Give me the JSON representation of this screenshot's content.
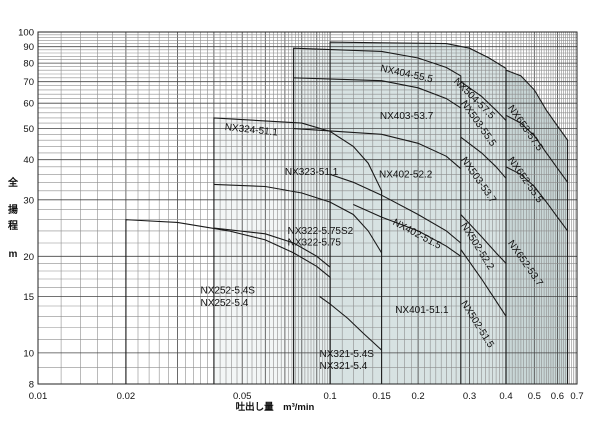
{
  "chart_data": {
    "type": "line",
    "title": "",
    "xlabel": "吐出し量　m³/min",
    "ylabel_chars": [
      "全",
      "揚",
      "程",
      "m"
    ],
    "x_scale": "log",
    "y_scale": "log",
    "xlim": [
      0.01,
      0.7
    ],
    "ylim": [
      8,
      100
    ],
    "grid": true,
    "x_ticks": [
      {
        "v": 0.01,
        "label": "0.01"
      },
      {
        "v": 0.02,
        "label": "0.02"
      },
      {
        "v": 0.05,
        "label": "0.05"
      },
      {
        "v": 0.1,
        "label": "0.1"
      },
      {
        "v": 0.15,
        "label": "0.15"
      },
      {
        "v": 0.2,
        "label": "0.2"
      },
      {
        "v": 0.3,
        "label": "0.3"
      },
      {
        "v": 0.4,
        "label": "0.4"
      },
      {
        "v": 0.5,
        "label": "0.5"
      },
      {
        "v": 0.6,
        "label": "0.6"
      },
      {
        "v": 0.7,
        "label": "0.7"
      }
    ],
    "y_ticks": [
      {
        "v": 8,
        "label": "8"
      },
      {
        "v": 10,
        "label": "10"
      },
      {
        "v": 15,
        "label": "15"
      },
      {
        "v": 20,
        "label": "20"
      },
      {
        "v": 30,
        "label": "30"
      },
      {
        "v": 40,
        "label": "40"
      },
      {
        "v": 50,
        "label": "50"
      },
      {
        "v": 60,
        "label": "60"
      },
      {
        "v": 70,
        "label": "70"
      },
      {
        "v": 80,
        "label": "80"
      },
      {
        "v": 90,
        "label": "90"
      },
      {
        "v": 100,
        "label": "100"
      }
    ],
    "regions": [
      {
        "name": "NX25",
        "fill": "#ffffff",
        "outline": [
          [
            0.02,
            8
          ],
          [
            0.02,
            26
          ],
          [
            0.03,
            25.5
          ],
          [
            0.045,
            24
          ],
          [
            0.06,
            22.5
          ],
          [
            0.075,
            20.5
          ],
          [
            0.09,
            18.6
          ],
          [
            0.1,
            17.2
          ],
          [
            0.1,
            8
          ]
        ],
        "curves": [],
        "labels": [
          {
            "text": "NX252-5.4S",
            "x": 0.036,
            "y": 15.3,
            "rot": 0
          },
          {
            "text": "NX252-5.4",
            "x": 0.036,
            "y": 14.0,
            "rot": 0
          }
        ]
      },
      {
        "name": "NX32",
        "fill": "#f3f6f6",
        "outline": [
          [
            0.04,
            8
          ],
          [
            0.04,
            54
          ],
          [
            0.08,
            52
          ],
          [
            0.1,
            49
          ],
          [
            0.12,
            44
          ],
          [
            0.135,
            39
          ],
          [
            0.15,
            32
          ],
          [
            0.15,
            8
          ]
        ],
        "curves": [
          [
            [
              0.04,
              33.5
            ],
            [
              0.06,
              33
            ],
            [
              0.08,
              31.5
            ],
            [
              0.1,
              29.5
            ],
            [
              0.12,
              27
            ],
            [
              0.135,
              24
            ],
            [
              0.15,
              20.5
            ]
          ],
          [
            [
              0.04,
              24.5
            ],
            [
              0.06,
              23.5
            ],
            [
              0.075,
              22
            ],
            [
              0.09,
              20
            ],
            [
              0.1,
              18.5
            ]
          ],
          [
            [
              0.092,
              15
            ],
            [
              0.1,
              14.2
            ],
            [
              0.115,
              12.8
            ],
            [
              0.13,
              11.5
            ],
            [
              0.145,
              10.5
            ],
            [
              0.15,
              10.2
            ]
          ]
        ],
        "labels": [
          {
            "text": "NX324-51.1",
            "x": 0.0435,
            "y": 49.5,
            "rot": 6
          },
          {
            "text": "NX323-51.1",
            "x": 0.07,
            "y": 35.8,
            "rot": 0
          },
          {
            "text": "NX322-5.75S2",
            "x": 0.0715,
            "y": 23.5,
            "rot": 0
          },
          {
            "text": "NX322-5.75",
            "x": 0.0715,
            "y": 21.6,
            "rot": 0
          },
          {
            "text": "NX321-5.4S",
            "x": 0.092,
            "y": 9.7,
            "rot": 0
          },
          {
            "text": "NX321-5.4",
            "x": 0.092,
            "y": 8.9,
            "rot": 0
          }
        ]
      },
      {
        "name": "NX40",
        "fill": "#e6eded",
        "outline": [
          [
            0.075,
            8
          ],
          [
            0.075,
            89
          ],
          [
            0.15,
            87
          ],
          [
            0.2,
            83
          ],
          [
            0.25,
            77.5
          ],
          [
            0.28,
            73
          ],
          [
            0.28,
            8
          ]
        ],
        "curves": [
          [
            [
              0.075,
              72
            ],
            [
              0.15,
              70.5
            ],
            [
              0.2,
              67
            ],
            [
              0.25,
              62
            ],
            [
              0.28,
              58
            ]
          ],
          [
            [
              0.075,
              50
            ],
            [
              0.15,
              48
            ],
            [
              0.2,
              45
            ],
            [
              0.25,
              41
            ],
            [
              0.28,
              37.5
            ]
          ],
          [
            [
              0.1,
              36
            ],
            [
              0.12,
              34
            ],
            [
              0.15,
              31
            ],
            [
              0.2,
              27
            ],
            [
              0.25,
              24
            ],
            [
              0.28,
              22
            ]
          ],
          [
            [
              0.15,
              26.5
            ],
            [
              0.2,
              24
            ],
            [
              0.25,
              21.5
            ],
            [
              0.28,
              20
            ]
          ],
          [
            [
              0.12,
              29
            ],
            [
              0.15,
              26.5
            ]
          ]
        ],
        "labels": [
          {
            "text": "NX404-55.5",
            "x": 0.148,
            "y": 75.5,
            "rot": 12
          },
          {
            "text": "NX403-53.7",
            "x": 0.148,
            "y": 53.5,
            "rot": 0
          },
          {
            "text": "NX402-52.2",
            "x": 0.147,
            "y": 35.2,
            "rot": 0
          },
          {
            "text": "NX402-51.5",
            "x": 0.163,
            "y": 25.2,
            "rot": 28
          },
          {
            "text": "NX401-51.1",
            "x": 0.167,
            "y": 13.3,
            "rot": 0
          }
        ]
      },
      {
        "name": "NX50",
        "fill": "#d7e2e2",
        "outline": [
          [
            0.1,
            8
          ],
          [
            0.1,
            93
          ],
          [
            0.25,
            92
          ],
          [
            0.3,
            89
          ],
          [
            0.35,
            83
          ],
          [
            0.4,
            77
          ],
          [
            0.4,
            8
          ]
        ],
        "curves": [
          [
            [
              0.28,
              70
            ],
            [
              0.33,
              63
            ],
            [
              0.37,
              57
            ],
            [
              0.4,
              53
            ]
          ],
          [
            [
              0.28,
              47
            ],
            [
              0.33,
              42
            ],
            [
              0.37,
              38
            ],
            [
              0.4,
              35
            ]
          ],
          [
            [
              0.28,
              27
            ],
            [
              0.33,
              23
            ],
            [
              0.37,
              20.5
            ],
            [
              0.4,
              19
            ]
          ],
          [
            [
              0.28,
              21
            ],
            [
              0.33,
              17
            ],
            [
              0.37,
              14.5
            ],
            [
              0.4,
              13
            ]
          ]
        ],
        "labels": [
          {
            "text": "NX504-57.5",
            "x": 0.264,
            "y": 70,
            "rot": 45
          },
          {
            "text": "NX503-55.5",
            "x": 0.28,
            "y": 60,
            "rot": 55
          },
          {
            "text": "NX503-53.7",
            "x": 0.28,
            "y": 40,
            "rot": 55
          },
          {
            "text": "NX502-52.2",
            "x": 0.28,
            "y": 25,
            "rot": 58
          },
          {
            "text": "NX502-51.5",
            "x": 0.28,
            "y": 14.3,
            "rot": 58
          }
        ]
      },
      {
        "name": "NX65",
        "fill": "#c8d6d6",
        "outline": [
          [
            0.4,
            8
          ],
          [
            0.4,
            76
          ],
          [
            0.45,
            73
          ],
          [
            0.5,
            66
          ],
          [
            0.55,
            57
          ],
          [
            0.65,
            46
          ],
          [
            0.65,
            8
          ]
        ],
        "curves": [
          [
            [
              0.4,
              55
            ],
            [
              0.45,
              52
            ],
            [
              0.5,
              47.5
            ],
            [
              0.55,
              42
            ],
            [
              0.65,
              34
            ]
          ],
          [
            [
              0.4,
              38
            ],
            [
              0.45,
              36
            ],
            [
              0.5,
              33
            ],
            [
              0.55,
              29.5
            ],
            [
              0.65,
              24
            ]
          ]
        ],
        "labels": [
          {
            "text": "NX653-57.5",
            "x": 0.405,
            "y": 58,
            "rot": 55
          },
          {
            "text": "NX652-55.5",
            "x": 0.405,
            "y": 40,
            "rot": 55
          },
          {
            "text": "NX652-53.7",
            "x": 0.405,
            "y": 22,
            "rot": 55
          }
        ]
      }
    ]
  }
}
